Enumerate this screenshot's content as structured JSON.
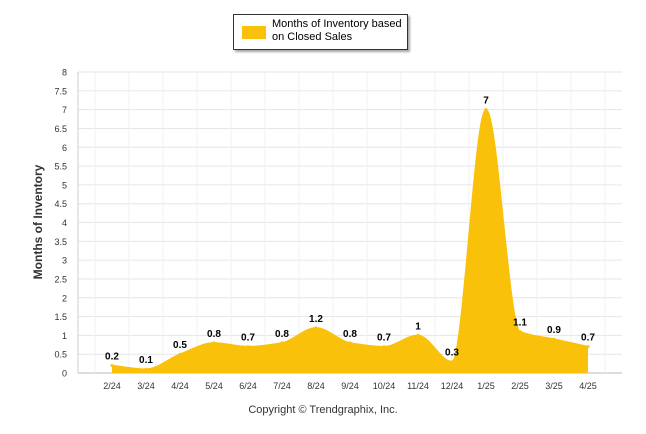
{
  "chart_data": {
    "type": "area",
    "title": "",
    "xlabel": "",
    "ylabel": "Months of Inventory",
    "ylim": [
      0,
      8
    ],
    "yticks": [
      0,
      0.5,
      1,
      1.5,
      2,
      2.5,
      3,
      3.5,
      4,
      4.5,
      5,
      5.5,
      6,
      6.5,
      7,
      7.5,
      8
    ],
    "ytick_labels": [
      "0",
      "0.5",
      "1",
      "1.5",
      "2",
      "2.5",
      "3",
      "3.5",
      "4",
      "4.5",
      "5",
      "5.5",
      "6",
      "6.5",
      "7",
      "7.5",
      "8"
    ],
    "grid": true,
    "legend_position": "top-center",
    "categories": [
      "2/24",
      "3/24",
      "4/24",
      "5/24",
      "6/24",
      "7/24",
      "8/24",
      "9/24",
      "10/24",
      "11/24",
      "12/24",
      "1/25",
      "2/25",
      "3/25",
      "4/25"
    ],
    "series": [
      {
        "name": "Months of Inventory based on Closed Sales",
        "color": "#F9C10A",
        "values": [
          0.2,
          0.1,
          0.5,
          0.8,
          0.7,
          0.8,
          1.2,
          0.8,
          0.7,
          1,
          0.3,
          7,
          1.1,
          0.9,
          0.7
        ],
        "value_labels": [
          "0.2",
          "0.1",
          "0.5",
          "0.8",
          "0.7",
          "0.8",
          "1.2",
          "0.8",
          "0.7",
          "1",
          "0.3",
          "7",
          "1.1",
          "0.9",
          "0.7"
        ]
      }
    ]
  },
  "footer": {
    "copyright": "Copyright © Trendgraphix, Inc."
  }
}
